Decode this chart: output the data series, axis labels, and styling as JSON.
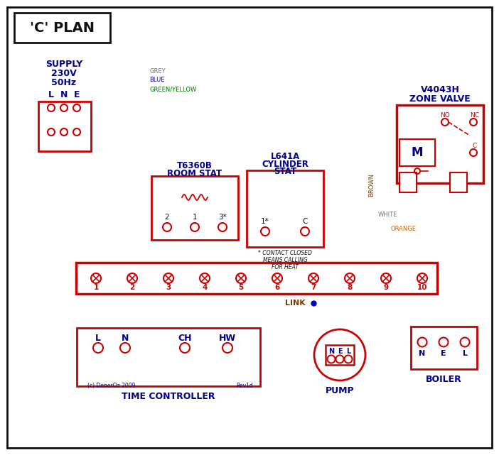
{
  "bg": "#ffffff",
  "red": "#cc0000",
  "blue": "#0000bb",
  "green": "#007700",
  "black": "#111111",
  "brown": "#7B3F00",
  "orange": "#CC6600",
  "grey": "#777777",
  "navy": "#00008B",
  "title": "'C' PLAN",
  "supply_lines": [
    "SUPPLY",
    "230V",
    "50Hz"
  ],
  "lne": [
    "L",
    "N",
    "E"
  ],
  "zone_title": [
    "V4043H",
    "ZONE VALVE"
  ],
  "room_title": [
    "T6360B",
    "ROOM STAT"
  ],
  "cyl_title": [
    "L641A",
    "CYLINDER",
    "STAT"
  ],
  "terms": [
    "1",
    "2",
    "3",
    "4",
    "5",
    "6",
    "7",
    "8",
    "9",
    "10"
  ],
  "tc_labels": [
    "L",
    "N",
    "CH",
    "HW"
  ],
  "tc_title": "TIME CONTROLLER",
  "pump_lbl": "PUMP",
  "boiler_lbl": "BOILER",
  "nel": [
    "N",
    "E",
    "L"
  ],
  "link_lbl": "LINK",
  "copy_left": "(c) DenerOz 2009",
  "rev": "Rev1d",
  "contact_note": [
    "* CONTACT CLOSED",
    "MEANS CALLING",
    "FOR HEAT"
  ],
  "wire_lbls": [
    "GREY",
    "BLUE",
    "GREEN/YELLOW",
    "BROWN",
    "WHITE",
    "ORANGE"
  ]
}
